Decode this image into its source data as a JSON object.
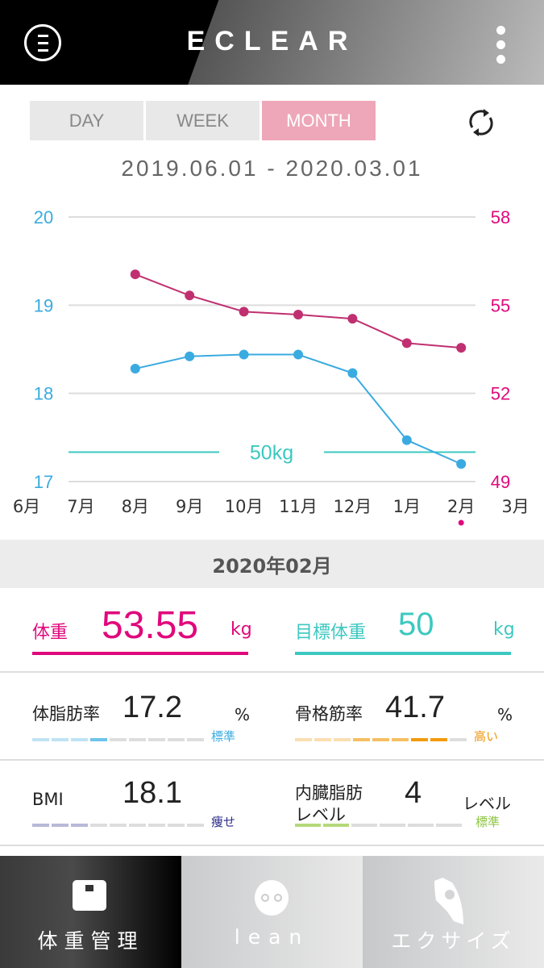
{
  "header": {
    "logo": "ECLEAR",
    "menu_icon": "menu-circle-icon",
    "more_icon": "more-vertical-icon"
  },
  "tabs": [
    {
      "label": "DAY"
    },
    {
      "label": "WEEK"
    },
    {
      "label": "MONTH",
      "active": true
    }
  ],
  "date_range": "2019.06.01 - 2020.03.01",
  "colors": {
    "accent": "#e0087c",
    "blue": "#3aabe0",
    "target": "#3cc8c0"
  },
  "chart_data": {
    "type": "line",
    "categories": [
      "6月",
      "7月",
      "8月",
      "9月",
      "10月",
      "11月",
      "12月",
      "1月",
      "2月",
      "3月"
    ],
    "left_axis": {
      "ticks": [
        "20",
        "19",
        "18",
        "17"
      ],
      "range": [
        17,
        20
      ],
      "color": "#3aabe0"
    },
    "right_axis": {
      "ticks": [
        "58",
        "55",
        "52",
        "49"
      ],
      "range": [
        49,
        58
      ],
      "color": "#e0087c"
    },
    "series": [
      {
        "axis": "left",
        "color": "#3aabe0",
        "values": [
          null,
          null,
          18.28,
          18.42,
          18.44,
          18.44,
          18.23,
          17.47,
          17.2,
          null
        ]
      },
      {
        "axis": "right",
        "color": "#c03070",
        "values": [
          null,
          null,
          56.05,
          55.33,
          54.78,
          54.68,
          54.54,
          53.71,
          53.55,
          null
        ]
      }
    ],
    "target": {
      "value": 50,
      "axis": "right",
      "label": "50kg"
    },
    "selected_category": "2月",
    "grid": true
  },
  "selected_month": "2020年02月",
  "weight": {
    "label": "体重",
    "value": "53.55",
    "unit": "kg"
  },
  "target_weight": {
    "label": "目標体重",
    "value": "50",
    "unit": "kg"
  },
  "metrics": [
    {
      "label": "体脂肪率",
      "value": "17.2",
      "unit": "%",
      "status": "標準",
      "status_color": "#3aabe0",
      "level": 4,
      "bars": [
        "#bfe3f4",
        "#bfe3f4",
        "#bfe3f4",
        "#6cc4ea",
        "#ddd",
        "#ddd",
        "#ddd",
        "#ddd",
        "#ddd"
      ]
    },
    {
      "label": "骨格筋率",
      "value": "41.7",
      "unit": "%",
      "status": "高い",
      "status_color": "#f0960a",
      "level": 8,
      "bars": [
        "#fbdeb0",
        "#fbdeb0",
        "#fbdeb0",
        "#f5bf62",
        "#f5bf62",
        "#f5bf62",
        "#f39a0c",
        "#f39a0c",
        "#ddd"
      ]
    },
    {
      "label": "BMI",
      "value": "18.1",
      "unit": "",
      "status": "痩せ",
      "status_color": "#2a2a8a",
      "level": 3,
      "bars": [
        "#b8b8d8",
        "#b8b8d8",
        "#b8b8d8",
        "#ddd",
        "#ddd",
        "#ddd",
        "#ddd",
        "#ddd",
        "#ddd"
      ]
    },
    {
      "label": "内臓脂肪\nレベル",
      "value": "4",
      "unit": "レベル",
      "status": "標準",
      "status_color": "#8cc63e",
      "level": 2,
      "bars": [
        "#b5d97a",
        "#b5d97a",
        "#ddd",
        "#ddd",
        "#ddd",
        "#ddd"
      ]
    }
  ],
  "nav": [
    {
      "label": "体重管理",
      "icon": "scale-icon",
      "active": true
    },
    {
      "label": "lean",
      "icon": "lean-face-icon"
    },
    {
      "label": "エクサイズ",
      "icon": "exercise-icon"
    }
  ]
}
